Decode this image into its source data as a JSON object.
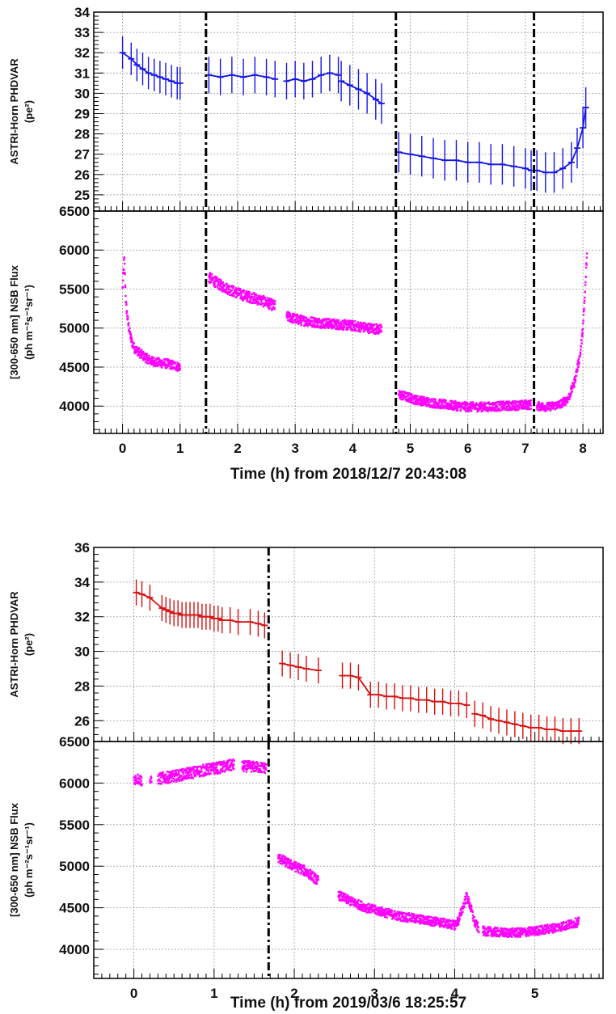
{
  "chart_data": [
    {
      "type": "scatter",
      "style": "error-bar points",
      "color": "#1515e6",
      "ylabel": "ASTRI-Horn PHDVAR",
      "yunit": "(pe²)",
      "xlabel": "Time (h) from 2018/12/7 20:43:08",
      "xlim": [
        -0.5,
        8.35
      ],
      "ylim": [
        24.2,
        34
      ],
      "yticks": [
        "25",
        "26",
        "27",
        "28",
        "29",
        "30",
        "31",
        "32",
        "33",
        "34"
      ],
      "xticks": [
        "0",
        "1",
        "2",
        "3",
        "4",
        "5",
        "6",
        "7",
        "8"
      ],
      "vlines": [
        1.45,
        4.75,
        7.15
      ],
      "grid": true,
      "segments": [
        {
          "x": [
            0.0,
            0.15,
            0.25,
            0.35,
            0.45,
            0.55,
            0.65,
            0.75,
            0.85,
            0.95,
            1.0
          ],
          "y": [
            32.0,
            31.7,
            31.4,
            31.2,
            31.0,
            30.9,
            30.8,
            30.7,
            30.6,
            30.5,
            30.5
          ],
          "err": 0.8
        },
        {
          "x": [
            1.5,
            1.7,
            1.9,
            2.1,
            2.3,
            2.5,
            2.65
          ],
          "y": [
            30.9,
            30.8,
            30.9,
            30.8,
            30.9,
            30.8,
            30.7
          ],
          "err": 0.9
        },
        {
          "x": [
            2.85,
            3.0,
            3.15,
            3.3,
            3.45,
            3.6,
            3.75
          ],
          "y": [
            30.6,
            30.7,
            30.6,
            30.7,
            30.9,
            31.0,
            30.9
          ],
          "err": 0.9
        },
        {
          "x": [
            3.8,
            3.95,
            4.1,
            4.25,
            4.4,
            4.5
          ],
          "y": [
            30.6,
            30.4,
            30.2,
            30.0,
            29.7,
            29.5
          ],
          "err": 1.0
        },
        {
          "x": [
            4.8,
            5.0,
            5.2,
            5.4,
            5.6,
            5.8,
            6.0,
            6.2,
            6.4,
            6.6,
            6.8,
            7.0,
            7.1
          ],
          "y": [
            27.1,
            27.0,
            26.9,
            26.8,
            26.7,
            26.7,
            26.6,
            26.6,
            26.5,
            26.5,
            26.4,
            26.3,
            26.2
          ],
          "err": 1.0
        },
        {
          "x": [
            7.2,
            7.35,
            7.5,
            7.65,
            7.8,
            7.9,
            8.0,
            8.05
          ],
          "y": [
            26.2,
            26.1,
            26.1,
            26.3,
            26.6,
            27.3,
            28.3,
            29.3
          ],
          "err": 1.0
        }
      ]
    },
    {
      "type": "scatter",
      "color": "#ff00ff",
      "ylabel": "[300-650 nm] NSB Flux",
      "yunit": "(ph m⁻²s⁻¹sr⁻¹)",
      "xlabel": "Time (h) from 2018/12/7 20:43:08",
      "xlim": [
        -0.5,
        8.35
      ],
      "ylim": [
        3650,
        6500
      ],
      "yticks": [
        "4000",
        "4500",
        "5000",
        "5500",
        "6000",
        "6500"
      ],
      "xticks": [
        "0",
        "1",
        "2",
        "3",
        "4",
        "5",
        "6",
        "7",
        "8"
      ],
      "vlines": [
        1.45,
        4.75,
        7.15
      ],
      "grid": true,
      "segments": [
        {
          "x": [
            0.0,
            0.03,
            0.06,
            0.1,
            0.15,
            0.2,
            0.3,
            0.4,
            0.5,
            0.6,
            0.7,
            0.8,
            0.9,
            1.0
          ],
          "y": [
            5500,
            5900,
            5300,
            5050,
            4850,
            4750,
            4680,
            4620,
            4580,
            4560,
            4550,
            4540,
            4520,
            4500
          ],
          "spread": 120
        },
        {
          "x": [
            1.5,
            1.7,
            1.9,
            2.1,
            2.3,
            2.5,
            2.65
          ],
          "y": [
            5650,
            5550,
            5480,
            5420,
            5380,
            5330,
            5280
          ],
          "spread": 140
        },
        {
          "x": [
            2.85,
            3.1,
            3.4,
            3.7,
            4.0,
            4.3,
            4.5
          ],
          "y": [
            5150,
            5100,
            5070,
            5050,
            5030,
            5000,
            4980
          ],
          "spread": 130
        },
        {
          "x": [
            4.8,
            5.1,
            5.4,
            5.7,
            6.0,
            6.3,
            6.6,
            6.9,
            7.1
          ],
          "y": [
            4150,
            4080,
            4040,
            4010,
            3990,
            3990,
            4000,
            4010,
            4020
          ],
          "spread": 120
        },
        {
          "x": [
            7.2,
            7.4,
            7.6,
            7.75,
            7.85,
            7.95,
            8.0,
            8.04,
            8.07
          ],
          "y": [
            4000,
            3990,
            4020,
            4100,
            4300,
            4650,
            5000,
            5500,
            5950
          ],
          "spread": 110
        }
      ]
    },
    {
      "type": "scatter",
      "style": "error-bar points",
      "color": "#d61010",
      "ylabel": "ASTRI-Horn PHDVAR",
      "yunit": "(pe²)",
      "xlabel": "Time (h) from 2019/03/6 18:25:57",
      "xlim": [
        -0.5,
        5.85
      ],
      "ylim": [
        24.8,
        36
      ],
      "yticks": [
        "26",
        "28",
        "30",
        "32",
        "34",
        "36"
      ],
      "xticks": [
        "0",
        "1",
        "2",
        "3",
        "4",
        "5"
      ],
      "vlines": [
        1.68
      ],
      "grid": true,
      "segments": [
        {
          "x": [
            0.03,
            0.1,
            0.2,
            0.35,
            0.4,
            0.45,
            0.5,
            0.55,
            0.6,
            0.65,
            0.7,
            0.75,
            0.8,
            0.85,
            0.9,
            0.95,
            1.0,
            1.05,
            1.1,
            1.2,
            1.3,
            1.45,
            1.55,
            1.63
          ],
          "y": [
            33.4,
            33.3,
            33.1,
            32.5,
            32.4,
            32.3,
            32.2,
            32.2,
            32.1,
            32.1,
            32.1,
            32.1,
            32.1,
            32.0,
            32.0,
            32.0,
            31.9,
            31.9,
            31.8,
            31.8,
            31.7,
            31.7,
            31.6,
            31.5
          ],
          "err": 0.75
        },
        {
          "x": [
            1.85,
            1.95,
            2.05,
            2.15,
            2.3
          ],
          "y": [
            29.3,
            29.2,
            29.1,
            29.0,
            28.9
          ],
          "err": 0.75
        },
        {
          "x": [
            2.6,
            2.7,
            2.8,
            2.95,
            3.05,
            3.15,
            3.25,
            3.35,
            3.45,
            3.55,
            3.65,
            3.75,
            3.85,
            3.95,
            4.05,
            4.15
          ],
          "y": [
            28.6,
            28.6,
            28.5,
            27.5,
            27.5,
            27.4,
            27.4,
            27.3,
            27.3,
            27.2,
            27.2,
            27.1,
            27.1,
            27.0,
            27.0,
            26.9
          ],
          "err": 0.75
        },
        {
          "x": [
            4.25,
            4.35,
            4.45,
            4.55,
            4.65,
            4.75,
            4.85,
            4.95,
            5.05,
            5.15,
            5.25,
            5.35,
            5.45,
            5.55
          ],
          "y": [
            26.4,
            26.3,
            26.1,
            26.0,
            25.9,
            25.8,
            25.7,
            25.6,
            25.6,
            25.5,
            25.5,
            25.4,
            25.4,
            25.4
          ],
          "err": 0.75
        }
      ]
    },
    {
      "type": "scatter",
      "color": "#ff00ff",
      "ylabel": "[300-650 nm] NSB Flux",
      "yunit": "(ph m⁻²s⁻¹sr⁻¹)",
      "xlabel": "Time (h) from 2019/03/6 18:25:57",
      "xlim": [
        -0.5,
        5.85
      ],
      "ylim": [
        3650,
        6500
      ],
      "yticks": [
        "4000",
        "4500",
        "5000",
        "5500",
        "6000",
        "6500"
      ],
      "xticks": [
        "0",
        "1",
        "2",
        "3",
        "4",
        "5"
      ],
      "vlines": [
        1.68
      ],
      "grid": true,
      "segments": [
        {
          "x": [
            0.0,
            0.05,
            0.1
          ],
          "y": [
            6050,
            6050,
            6030
          ],
          "spread": 130
        },
        {
          "x": [
            0.2,
            0.22
          ],
          "y": [
            6020,
            6020
          ],
          "spread": 120
        },
        {
          "x": [
            0.3,
            0.5,
            0.7,
            0.9,
            1.1,
            1.25
          ],
          "y": [
            6050,
            6080,
            6120,
            6160,
            6190,
            6220
          ],
          "spread": 140
        },
        {
          "x": [
            1.35,
            1.45,
            1.55,
            1.65
          ],
          "y": [
            6200,
            6200,
            6190,
            6180
          ],
          "spread": 130
        },
        {
          "x": [
            1.8,
            1.95,
            2.1,
            2.2,
            2.3
          ],
          "y": [
            5100,
            5020,
            4960,
            4900,
            4820
          ],
          "spread": 120
        },
        {
          "x": [
            2.55,
            2.7,
            2.9,
            3.1,
            3.3,
            3.5,
            3.7,
            3.85,
            4.0,
            4.05,
            4.1,
            4.15,
            4.2,
            4.25,
            4.3
          ],
          "y": [
            4650,
            4580,
            4500,
            4450,
            4400,
            4370,
            4340,
            4320,
            4290,
            4350,
            4500,
            4640,
            4500,
            4320,
            4250
          ],
          "spread": 110
        },
        {
          "x": [
            4.35,
            4.6,
            4.8,
            5.0,
            5.2,
            5.4,
            5.55
          ],
          "y": [
            4220,
            4200,
            4200,
            4220,
            4250,
            4290,
            4330
          ],
          "spread": 110
        }
      ]
    }
  ]
}
